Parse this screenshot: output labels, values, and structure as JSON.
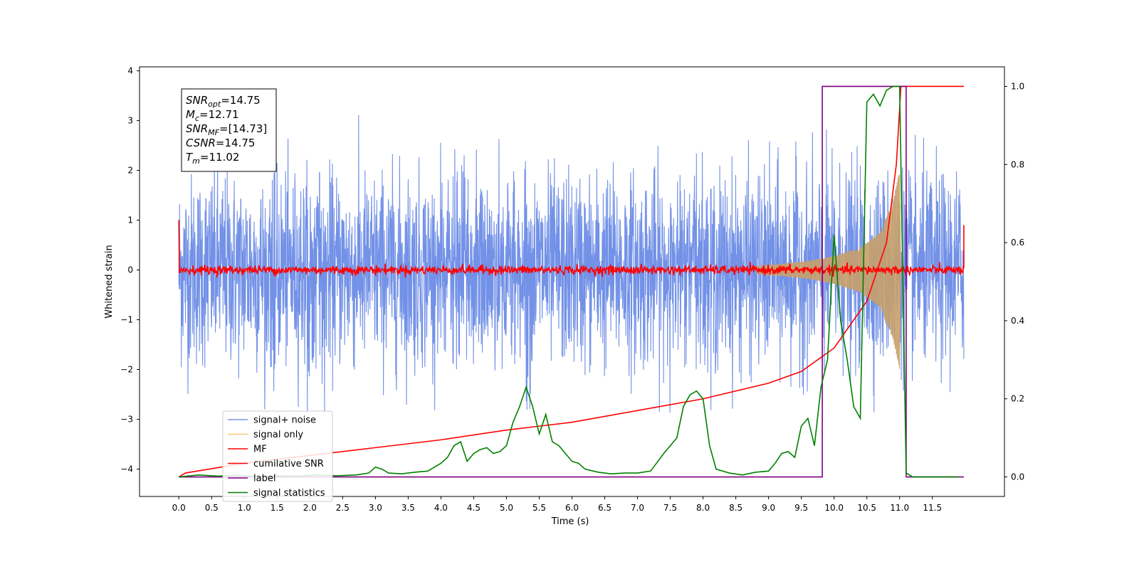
{
  "chart_data": {
    "type": "line",
    "title": "",
    "xlabel": "Time (s)",
    "ylabel_left": "Whitened strain",
    "ylabel_right": "",
    "xlim": [
      -0.6,
      12.6
    ],
    "ylim_left": [
      -4.55,
      4.08
    ],
    "ylim_right": [
      -0.05,
      1.05
    ],
    "x_ticks": [
      0.0,
      0.5,
      1.0,
      1.5,
      2.0,
      2.5,
      3.0,
      3.5,
      4.0,
      4.5,
      5.0,
      5.5,
      6.0,
      6.5,
      7.0,
      7.5,
      8.0,
      8.5,
      9.0,
      9.5,
      10.0,
      10.5,
      11.0,
      11.5
    ],
    "x_tick_labels": [
      "0.0",
      "0.5",
      "1.0",
      "1.5",
      "2.0",
      "2.5",
      "3.0",
      "3.5",
      "4.0",
      "4.5",
      "5.0",
      "5.5",
      "6.0",
      "6.5",
      "7.0",
      "7.5",
      "8.0",
      "8.5",
      "9.0",
      "9.5",
      "10.0",
      "10.5",
      "11.0",
      "11.5"
    ],
    "y_left_ticks": [
      4,
      3,
      2,
      1,
      0,
      -1,
      -2,
      -3,
      -4
    ],
    "y_left_tick_labels": [
      "4",
      "3",
      "2",
      "1",
      "0",
      "−1",
      "−2",
      "−3",
      "−4"
    ],
    "y_right_ticks": [
      1.0,
      0.8,
      0.6,
      0.4,
      0.2,
      0.0
    ],
    "y_right_tick_labels": [
      "1.0",
      "0.8",
      "0.6",
      "0.4",
      "0.2",
      "0.0"
    ],
    "time_range": [
      0.0,
      11.98
    ],
    "signal_noise_range": [
      -2.9,
      3.5
    ],
    "signal_only_envelope": {
      "x": [
        8.8,
        9.2,
        9.6,
        10.0,
        10.4,
        10.7,
        10.9,
        11.0,
        11.02
      ],
      "amplitude": [
        0.08,
        0.12,
        0.18,
        0.28,
        0.45,
        0.75,
        1.4,
        2.0,
        0.0
      ]
    },
    "cumulative_snr": {
      "x": [
        0.0,
        0.1,
        1.0,
        2.0,
        3.0,
        4.0,
        5.0,
        6.0,
        7.0,
        8.0,
        9.0,
        9.5,
        10.0,
        10.5,
        10.8,
        10.95,
        11.02,
        11.98
      ],
      "y": [
        0.0,
        0.01,
        0.035,
        0.055,
        0.075,
        0.095,
        0.12,
        0.14,
        0.17,
        0.2,
        0.24,
        0.27,
        0.33,
        0.45,
        0.6,
        0.8,
        1.0,
        1.0
      ]
    },
    "label": {
      "x": [
        0.0,
        9.82,
        9.82,
        11.1,
        11.1,
        11.98
      ],
      "y": [
        0.0,
        0.0,
        1.0,
        1.0,
        0.0,
        0.0
      ]
    },
    "signal_statistics": {
      "x": [
        0.0,
        0.3,
        0.6,
        0.9,
        1.2,
        1.5,
        1.8,
        2.1,
        2.4,
        2.7,
        2.9,
        3.0,
        3.1,
        3.2,
        3.4,
        3.6,
        3.8,
        4.0,
        4.1,
        4.2,
        4.3,
        4.4,
        4.5,
        4.6,
        4.7,
        4.8,
        4.9,
        5.0,
        5.1,
        5.2,
        5.3,
        5.4,
        5.5,
        5.6,
        5.7,
        5.8,
        5.9,
        6.0,
        6.1,
        6.2,
        6.4,
        6.6,
        6.8,
        7.0,
        7.2,
        7.4,
        7.6,
        7.7,
        7.8,
        7.9,
        8.0,
        8.1,
        8.2,
        8.3,
        8.4,
        8.6,
        8.8,
        9.0,
        9.1,
        9.2,
        9.3,
        9.4,
        9.5,
        9.6,
        9.7,
        9.8,
        9.9,
        10.0,
        10.1,
        10.2,
        10.3,
        10.4,
        10.5,
        10.6,
        10.7,
        10.8,
        10.9,
        11.0,
        11.1,
        11.2,
        11.5,
        11.9
      ],
      "y": [
        0.0,
        0.005,
        0.002,
        0.004,
        0.001,
        0.003,
        0.002,
        0.005,
        0.003,
        0.005,
        0.01,
        0.025,
        0.02,
        0.01,
        0.008,
        0.012,
        0.015,
        0.035,
        0.05,
        0.08,
        0.09,
        0.04,
        0.06,
        0.07,
        0.075,
        0.06,
        0.065,
        0.08,
        0.14,
        0.18,
        0.23,
        0.18,
        0.11,
        0.16,
        0.09,
        0.08,
        0.06,
        0.04,
        0.035,
        0.02,
        0.012,
        0.008,
        0.01,
        0.01,
        0.015,
        0.06,
        0.1,
        0.18,
        0.21,
        0.22,
        0.2,
        0.08,
        0.02,
        0.015,
        0.01,
        0.005,
        0.012,
        0.015,
        0.035,
        0.06,
        0.065,
        0.05,
        0.13,
        0.15,
        0.08,
        0.23,
        0.3,
        0.62,
        0.4,
        0.3,
        0.18,
        0.15,
        0.96,
        0.98,
        0.95,
        0.99,
        1.0,
        1.0,
        0.01,
        0.0,
        0.0,
        0.0
      ]
    },
    "legend": {
      "placement": "lower-left",
      "entries": [
        {
          "name": "signal+ noise",
          "color": "#6a8be6"
        },
        {
          "name": "signal only",
          "color": "#f4c56a"
        },
        {
          "name": "MF",
          "color": "#ff0000"
        },
        {
          "name": "cumilative SNR",
          "color": "#ff0000"
        },
        {
          "name": "label",
          "color": "#800080"
        },
        {
          "name": "signal statistics",
          "color": "#008000"
        }
      ]
    },
    "annotation": {
      "lines": [
        {
          "sym": "SNR",
          "sub": "opt",
          "val": "=14.75"
        },
        {
          "sym": "M",
          "sub": "c",
          "val": "=12.71"
        },
        {
          "sym": "SNR",
          "sub": "MF",
          "val": "=[14.73]"
        },
        {
          "sym": "CSNR",
          "sub": "",
          "val": "=14.75"
        },
        {
          "sym": "T",
          "sub": "m",
          "val": "=11.02"
        }
      ]
    },
    "colors": {
      "signal_noise": "#6a8be6",
      "signal_only": "#c8a06a",
      "mf": "#ff0000",
      "csnr": "#ff0000",
      "label": "#800080",
      "stats": "#008000"
    }
  }
}
